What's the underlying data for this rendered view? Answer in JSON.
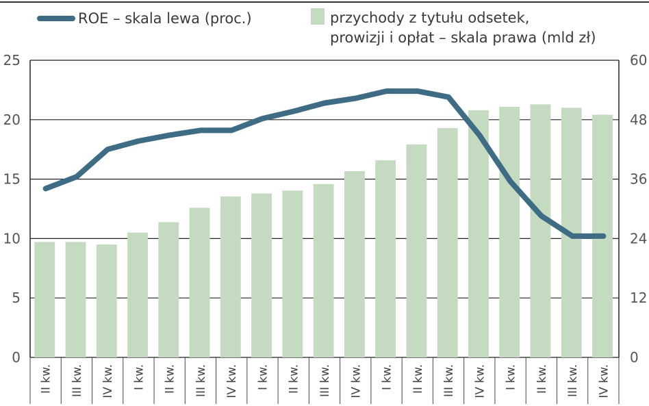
{
  "chart_data": {
    "type": "bar",
    "categories": [
      "II kw.",
      "III kw.",
      "IV kw.",
      "I kw.",
      "II kw.",
      "III kw.",
      "IV kw.",
      "I kw.",
      "II kw.",
      "III kw.",
      "IV kw.",
      "I kw.",
      "II kw.",
      "III kw.",
      "IV kw.",
      "I kw.",
      "II kw.",
      "III kw.",
      "IV kw."
    ],
    "series": [
      {
        "name": "przychody z tytułu odsetek, prowizji i opłat – skala prawa (mld zł)",
        "kind": "bar",
        "axis": "right",
        "color": "#c5dbc1",
        "values": [
          23.3,
          23.3,
          22.8,
          25.2,
          27.3,
          30.2,
          32.5,
          33.1,
          33.7,
          35.0,
          37.6,
          39.8,
          43.0,
          46.3,
          49.9,
          50.6,
          51.1,
          50.4,
          49.0
        ]
      },
      {
        "name": "ROE – skala lewa (proc.)",
        "kind": "line",
        "axis": "left",
        "color": "#3e6c85",
        "values": [
          14.2,
          15.2,
          17.5,
          18.2,
          18.7,
          19.1,
          19.1,
          20.1,
          20.7,
          21.4,
          21.8,
          22.4,
          22.4,
          21.9,
          18.7,
          14.8,
          11.9,
          10.2,
          10.2
        ]
      }
    ],
    "ylim_left": [
      0,
      25
    ],
    "yticks_left": [
      "0",
      "5",
      "10",
      "15",
      "20",
      "25"
    ],
    "ylim_right": [
      0,
      60
    ],
    "yticks_right": [
      "0",
      "12",
      "24",
      "36",
      "48",
      "60"
    ],
    "grid": true,
    "legend_position": "top",
    "legend": {
      "line_label": "ROE – skala lewa (proc.)",
      "bar_label_line1": "przychody z tytułu odsetek,",
      "bar_label_line2": "prowizji i opłat  – skala prawa (mld zł)"
    }
  }
}
